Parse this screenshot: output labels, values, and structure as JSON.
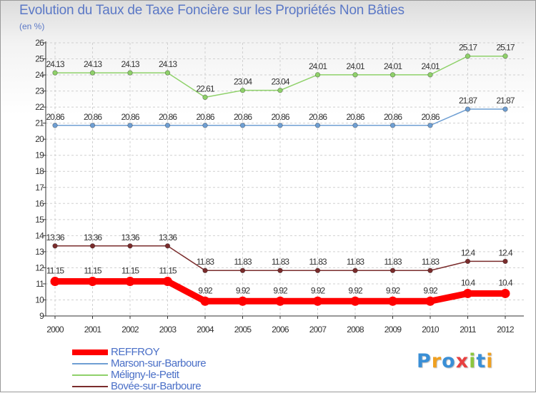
{
  "chart_data": {
    "type": "line",
    "title": "Evolution du Taux de Taxe Foncière sur les Propriétés Non Bâties",
    "ylabel": "(en %)",
    "xlabel": "",
    "ylim": [
      9,
      26
    ],
    "yticks": [
      "9",
      "10",
      "11",
      "12",
      "13",
      "14",
      "15",
      "16",
      "17",
      "18",
      "19",
      "20",
      "21",
      "22",
      "23",
      "24",
      "25",
      "26"
    ],
    "categories": [
      "2000",
      "2001",
      "2002",
      "2003",
      "2004",
      "2005",
      "2006",
      "2007",
      "2008",
      "2009",
      "2010",
      "2011",
      "2012"
    ],
    "series": [
      {
        "name": "REFFROY",
        "color": "#ff0000",
        "values": [
          11.15,
          11.15,
          11.15,
          11.15,
          9.92,
          9.92,
          9.92,
          9.92,
          9.92,
          9.92,
          9.92,
          10.4,
          10.4
        ],
        "labels": [
          "11.15",
          "11.15",
          "11.15",
          "11.15",
          "9.92",
          "9.92",
          "9.92",
          "9.92",
          "9.92",
          "9.92",
          "9.92",
          "10.4",
          "10.4"
        ]
      },
      {
        "name": "Marson-sur-Barboure",
        "color": "#6f9fd3",
        "values": [
          20.86,
          20.86,
          20.86,
          20.86,
          20.86,
          20.86,
          20.86,
          20.86,
          20.86,
          20.86,
          20.86,
          21.87,
          21.87
        ],
        "labels": [
          "20.86",
          "20.86",
          "20.86",
          "20.86",
          "20.86",
          "20.86",
          "20.86",
          "20.86",
          "20.86",
          "20.86",
          "20.86",
          "21.87",
          "21.87"
        ]
      },
      {
        "name": "Méligny-le-Petit",
        "color": "#8fd16a",
        "values": [
          24.13,
          24.13,
          24.13,
          24.13,
          22.61,
          23.04,
          23.04,
          24.01,
          24.01,
          24.01,
          24.01,
          25.17,
          25.17
        ],
        "labels": [
          "24.13",
          "24.13",
          "24.13",
          "24.13",
          "22.61",
          "23.04",
          "23.04",
          "24.01",
          "24.01",
          "24.01",
          "24.01",
          "25.17",
          "25.17"
        ]
      },
      {
        "name": "Bovée-sur-Barboure",
        "color": "#7a2c2c",
        "values": [
          13.36,
          13.36,
          13.36,
          13.36,
          11.83,
          11.83,
          11.83,
          11.83,
          11.83,
          11.83,
          11.83,
          12.4,
          12.4
        ],
        "labels": [
          "13.36",
          "13.36",
          "13.36",
          "13.36",
          "11.83",
          "11.83",
          "11.83",
          "11.83",
          "11.83",
          "11.83",
          "11.83",
          "12.4",
          "12.4"
        ]
      }
    ]
  },
  "logo": {
    "text": "Proxiti"
  }
}
